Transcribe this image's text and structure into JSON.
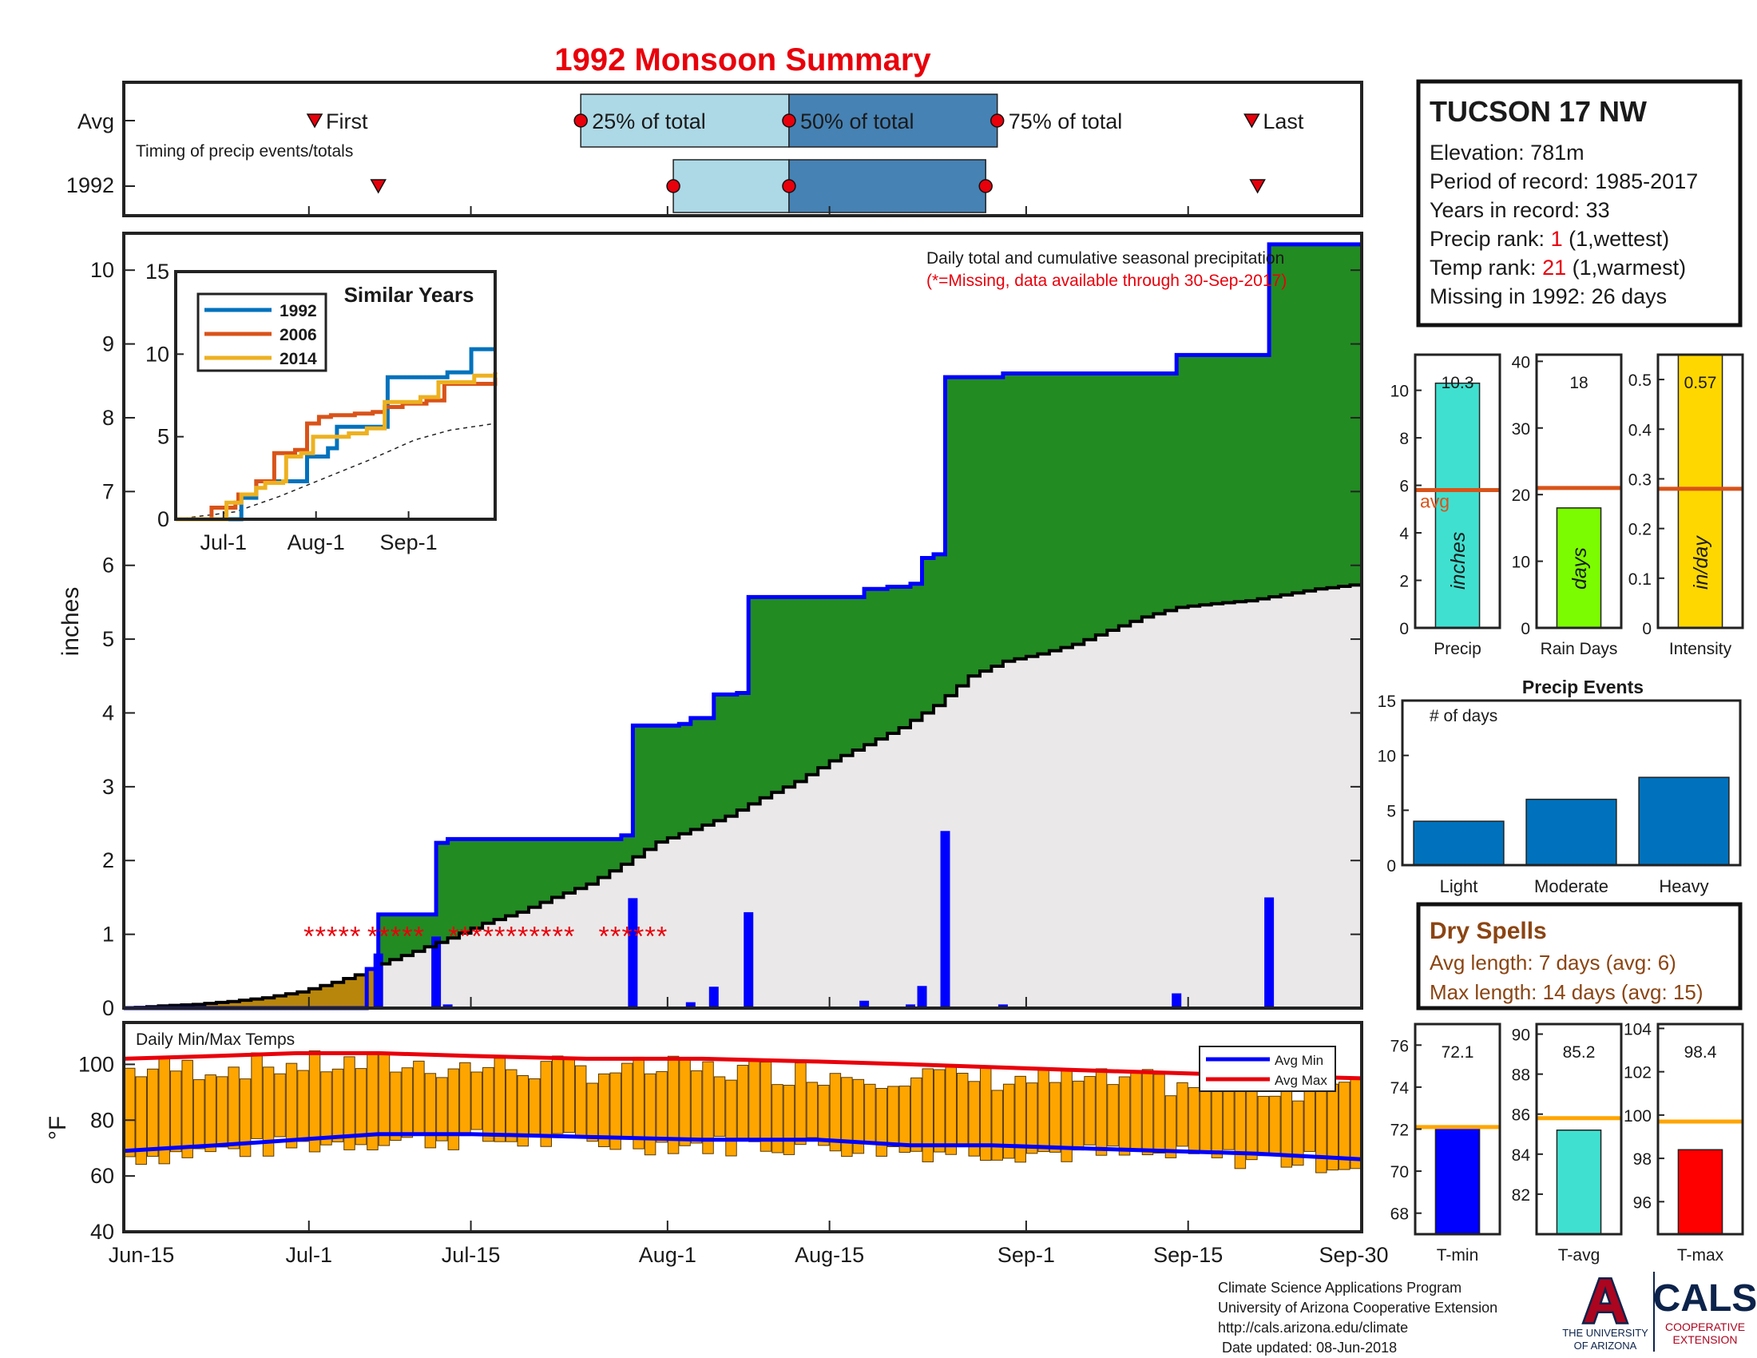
{
  "colors": {
    "green": "#228B22",
    "gray": "#EAE8E8",
    "blue": "#0000FF",
    "ochre": "#B8860B",
    "orange": "#FFA500",
    "red": "#E8000B",
    "navy": "#0C2C84",
    "brown": "#8B4513",
    "y1992": "#0072BD",
    "y2006": "#D95319",
    "y2014": "#EDB120",
    "lightblue": "#ADD8E6",
    "steel": "#4682B4",
    "evtbar": "#0072BD",
    "avgline": "#D95319"
  },
  "header": {
    "title": "1992 Monsoon Summary"
  },
  "timing": {
    "row_avg": "Avg",
    "row_year": "1992",
    "caption": "Timing of precip events/totals",
    "first": "First",
    "last": "Last",
    "p25": "25% of total",
    "p50": "50% of total",
    "p75": "75% of total",
    "avg_days": {
      "first": 16.5,
      "p25": 39.5,
      "p50": 57.5,
      "p75": 75.5,
      "last": 97.5
    },
    "year_days": {
      "first": 22,
      "p25": 47.5,
      "p50": 57.5,
      "p75": 74.5,
      "last": 98
    }
  },
  "station": {
    "name": "TUCSON 17 NW",
    "elevation_label": "Elevation: ",
    "elevation": "781m",
    "period_label": "Period of record: ",
    "period": "1985-2017",
    "years_label": "Years in record: ",
    "years": "33",
    "precip_rank_label": "Precip rank: ",
    "precip_rank": "1",
    "precip_rank_note": " (1,wettest)",
    "temp_rank_label": "Temp rank: ",
    "temp_rank": "21",
    "temp_rank_note": " (1,warmest)",
    "missing_label": "Missing in 1992: ",
    "missing": "26 days"
  },
  "chart_data": [
    {
      "type": "area",
      "id": "main",
      "ylabel": "inches",
      "title": "Daily total and cumulative seasonal precipitation",
      "note": "(*=Missing, data available through 30-Sep-2017)",
      "x_ticks": [
        "Jun-15",
        "Jul-1",
        "Jul-15",
        "Aug-1",
        "Aug-15",
        "Sep-1",
        "Sep-15",
        "Sep-30"
      ],
      "x_tick_days": [
        0,
        16,
        30,
        47,
        61,
        78,
        92,
        107
      ],
      "xlim": [
        0,
        107
      ],
      "ylim": [
        0,
        10.5
      ],
      "y_ticks": [
        "0",
        "1",
        "2",
        "3",
        "4",
        "5",
        "6",
        "7",
        "8",
        "9",
        "10"
      ],
      "cumulative_1992_steps": [
        [
          0,
          0
        ],
        [
          21,
          0.53
        ],
        [
          22,
          1.27
        ],
        [
          26,
          1.27
        ],
        [
          27,
          2.24
        ],
        [
          28,
          2.29
        ],
        [
          43,
          2.34
        ],
        [
          44,
          3.83
        ],
        [
          48,
          3.85
        ],
        [
          49,
          3.93
        ],
        [
          51,
          4.25
        ],
        [
          53,
          4.27
        ],
        [
          54,
          5.57
        ],
        [
          63,
          5.57
        ],
        [
          64,
          5.68
        ],
        [
          66,
          5.71
        ],
        [
          68,
          5.75
        ],
        [
          69,
          6.1
        ],
        [
          70,
          6.15
        ],
        [
          71,
          8.55
        ],
        [
          76,
          8.6
        ],
        [
          90,
          8.6
        ],
        [
          91,
          8.85
        ],
        [
          98,
          8.85
        ],
        [
          99,
          10.35
        ],
        [
          107,
          10.35
        ]
      ],
      "average_cumulative": [
        [
          0,
          0
        ],
        [
          3,
          0.03
        ],
        [
          6,
          0.05
        ],
        [
          9,
          0.09
        ],
        [
          12,
          0.14
        ],
        [
          15,
          0.22
        ],
        [
          18,
          0.35
        ],
        [
          20,
          0.45
        ],
        [
          22,
          0.6
        ],
        [
          25,
          0.77
        ],
        [
          28,
          0.95
        ],
        [
          31,
          1.15
        ],
        [
          34,
          1.3
        ],
        [
          37,
          1.5
        ],
        [
          40,
          1.68
        ],
        [
          43,
          1.95
        ],
        [
          46,
          2.25
        ],
        [
          49,
          2.42
        ],
        [
          52,
          2.6
        ],
        [
          55,
          2.85
        ],
        [
          58,
          3.07
        ],
        [
          61,
          3.35
        ],
        [
          64,
          3.57
        ],
        [
          67,
          3.8
        ],
        [
          70,
          4.1
        ],
        [
          73,
          4.5
        ],
        [
          76,
          4.7
        ],
        [
          79,
          4.8
        ],
        [
          82,
          4.93
        ],
        [
          85,
          5.12
        ],
        [
          88,
          5.3
        ],
        [
          91,
          5.43
        ],
        [
          94,
          5.48
        ],
        [
          97,
          5.52
        ],
        [
          100,
          5.6
        ],
        [
          103,
          5.68
        ],
        [
          107,
          5.75
        ]
      ],
      "daily_precip": [
        [
          22,
          0.74
        ],
        [
          27,
          0.97
        ],
        [
          28,
          0.05
        ],
        [
          44,
          1.49
        ],
        [
          49,
          0.08
        ],
        [
          51,
          0.29
        ],
        [
          54,
          1.3
        ],
        [
          64,
          0.1
        ],
        [
          68,
          0.05
        ],
        [
          69,
          0.3
        ],
        [
          71,
          2.4
        ],
        [
          76,
          0.05
        ],
        [
          91,
          0.2
        ],
        [
          99,
          1.5
        ]
      ],
      "missing_marker_value": 1,
      "missing_days": [
        16,
        17,
        18,
        19,
        20,
        21.5,
        22.5,
        23.5,
        24.5,
        25.5,
        28.5,
        29.5,
        30.5,
        31.5,
        32.5,
        33.5,
        34.5,
        35.5,
        36.5,
        37.5,
        38.5,
        41.5,
        42.5,
        43.5,
        44.5,
        45.5,
        46.5
      ]
    },
    {
      "type": "line",
      "id": "similar",
      "title": "Similar Years",
      "x_ticks": [
        "Jul-1",
        "Aug-1",
        "Sep-1"
      ],
      "x_tick_days": [
        16,
        47,
        78
      ],
      "xlim": [
        0,
        107
      ],
      "ylim": [
        0,
        15
      ],
      "y_ticks": [
        "0",
        "5",
        "10",
        "15"
      ],
      "series": [
        {
          "name": "1992",
          "points": [
            [
              0,
              0
            ],
            [
              21,
              0
            ],
            [
              22,
              1.3
            ],
            [
              27,
              2.3
            ],
            [
              44,
              3.8
            ],
            [
              51,
              4.3
            ],
            [
              54,
              5.6
            ],
            [
              71,
              8.6
            ],
            [
              91,
              8.9
            ],
            [
              99,
              10.3
            ],
            [
              107,
              10.3
            ]
          ]
        },
        {
          "name": "2006",
          "points": [
            [
              0,
              0
            ],
            [
              11,
              0
            ],
            [
              12,
              0.7
            ],
            [
              20,
              1.0
            ],
            [
              21,
              1.5
            ],
            [
              27,
              2.3
            ],
            [
              32,
              2.3
            ],
            [
              33,
              4.0
            ],
            [
              40,
              4.2
            ],
            [
              44,
              5.8
            ],
            [
              48,
              6.2
            ],
            [
              52,
              6.3
            ],
            [
              60,
              6.4
            ],
            [
              66,
              6.5
            ],
            [
              70,
              6.8
            ],
            [
              76,
              7.0
            ],
            [
              84,
              7.2
            ],
            [
              90,
              8.2
            ],
            [
              107,
              8.9
            ]
          ]
        },
        {
          "name": "2014",
          "points": [
            [
              0,
              0
            ],
            [
              16,
              0
            ],
            [
              17,
              1.0
            ],
            [
              22,
              1.5
            ],
            [
              27,
              1.9
            ],
            [
              30,
              2.2
            ],
            [
              36,
              2.3
            ],
            [
              37,
              3.8
            ],
            [
              42,
              4.0
            ],
            [
              46,
              5.0
            ],
            [
              58,
              5.2
            ],
            [
              64,
              5.5
            ],
            [
              70,
              7.1
            ],
            [
              82,
              7.4
            ],
            [
              88,
              8.3
            ],
            [
              100,
              8.7
            ],
            [
              107,
              8.8
            ]
          ]
        }
      ],
      "average": [
        [
          0,
          0
        ],
        [
          20,
          0.45
        ],
        [
          35,
          1.4
        ],
        [
          50,
          2.5
        ],
        [
          65,
          3.6
        ],
        [
          80,
          4.8
        ],
        [
          92,
          5.4
        ],
        [
          107,
          5.8
        ]
      ]
    },
    {
      "type": "bar",
      "id": "temps",
      "title": "Daily Min/Max Temps",
      "ylabel": "°F",
      "ylim": [
        40,
        115
      ],
      "y_ticks": [
        "40",
        "60",
        "80",
        "100"
      ],
      "legend": [
        "Avg Min",
        "Avg Max"
      ],
      "avg_min": [
        [
          0,
          69
        ],
        [
          8,
          71
        ],
        [
          15,
          73
        ],
        [
          22,
          75
        ],
        [
          30,
          75
        ],
        [
          40,
          74
        ],
        [
          50,
          73
        ],
        [
          60,
          73
        ],
        [
          68,
          71
        ],
        [
          75,
          71
        ],
        [
          82,
          70
        ],
        [
          90,
          69
        ],
        [
          98,
          68
        ],
        [
          107,
          66
        ]
      ],
      "avg_max": [
        [
          0,
          102
        ],
        [
          8,
          103
        ],
        [
          15,
          104
        ],
        [
          22,
          104
        ],
        [
          30,
          103
        ],
        [
          40,
          102
        ],
        [
          50,
          102
        ],
        [
          60,
          101
        ],
        [
          68,
          100
        ],
        [
          75,
          99
        ],
        [
          82,
          98
        ],
        [
          90,
          97
        ],
        [
          98,
          96
        ],
        [
          107,
          95
        ]
      ]
    },
    {
      "type": "bar",
      "id": "precip_total",
      "xlabel": "Precip",
      "value": 10.3,
      "value_label": "10.3",
      "avg": 5.8,
      "avg_label": "avg",
      "unit": "inches",
      "ylim": [
        0,
        11.5
      ],
      "y_ticks": [
        "0",
        "2",
        "4",
        "6",
        "8",
        "10"
      ]
    },
    {
      "type": "bar",
      "id": "rain_days",
      "xlabel": "Rain Days",
      "value": 18,
      "value_label": "18",
      "avg": 21,
      "unit": "days",
      "ylim": [
        0,
        41
      ],
      "y_ticks": [
        "0",
        "10",
        "20",
        "30",
        "40"
      ]
    },
    {
      "type": "bar",
      "id": "intensity",
      "xlabel": "Intensity",
      "value": 0.57,
      "value_label": "0.57",
      "avg": 0.28,
      "unit": "in/day",
      "ylim": [
        0,
        0.55
      ],
      "y_ticks": [
        "0",
        "0.1",
        "0.2",
        "0.3",
        "0.4",
        "0.5"
      ]
    },
    {
      "type": "bar",
      "id": "events",
      "title": "Precip Events",
      "ylabel": "# of days",
      "categories": [
        "Light",
        "Moderate",
        "Heavy"
      ],
      "values": [
        4,
        6,
        8
      ],
      "ylim": [
        0,
        15
      ],
      "y_ticks": [
        "0",
        "5",
        "10",
        "15"
      ]
    },
    {
      "type": "bar",
      "id": "tmin",
      "xlabel": "T-min",
      "value": 72.1,
      "value_label": "72.1",
      "avg": 72.1,
      "ylim": [
        67,
        77
      ],
      "y_ticks": [
        "68",
        "70",
        "72",
        "74",
        "76"
      ]
    },
    {
      "type": "bar",
      "id": "tavg",
      "xlabel": "T-avg",
      "value": 85.2,
      "value_label": "85.2",
      "avg": 85.8,
      "ylim": [
        80,
        90.5
      ],
      "y_ticks": [
        "82",
        "84",
        "86",
        "88",
        "90"
      ]
    },
    {
      "type": "bar",
      "id": "tmax",
      "xlabel": "T-max",
      "value": 98.4,
      "value_label": "98.4",
      "avg": 99.7,
      "ylim": [
        94.5,
        104.2
      ],
      "y_ticks": [
        "96",
        "98",
        "100",
        "102",
        "104"
      ]
    }
  ],
  "dry_spells": {
    "title": "Dry Spells",
    "avg_line": "Avg length: 7 days (avg: 6)",
    "max_line": "Max length: 14 days (avg: 15)"
  },
  "footer": {
    "line1": "Climate Science Applications Program",
    "line2": "University of Arizona Cooperative Extension",
    "line3": "http://cals.arizona.edu/climate",
    "line4": "Date updated: 08-Jun-2018"
  },
  "logos": {
    "ua_letter": "A",
    "ua_line1": "THE UNIVERSITY",
    "ua_line2": "OF ARIZONA",
    "cals": "CALS",
    "cals_line1": "COOPERATIVE",
    "cals_line2": "EXTENSION"
  }
}
